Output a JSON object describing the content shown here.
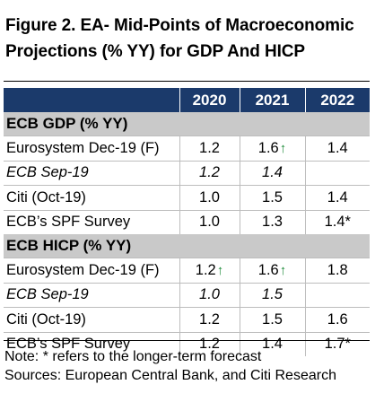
{
  "title_line1": "Figure 2. EA- Mid-Points of Macroeconomic",
  "title_line2": "Projections (% YY) for GDP And HICP",
  "columns": [
    "2020",
    "2021",
    "2022"
  ],
  "arrow_icon": "up-arrow",
  "arrow_color": "#1e8c3a",
  "header_color": "#1b3a6b",
  "section_color": "#c9c9c9",
  "sections": [
    {
      "title": "ECB GDP (% YY)",
      "rows": [
        {
          "label": "Eurosystem Dec-19 (F)",
          "v2020": "1.2",
          "v2021": "1.6",
          "v2021_arrow": "↑",
          "v2022": "1.4"
        },
        {
          "label": "ECB Sep-19",
          "v2020": "1.2",
          "v2021": "1.4",
          "v2022": ""
        },
        {
          "label": "Citi (Oct-19)",
          "v2020": "1.0",
          "v2021": "1.5",
          "v2022": "1.4"
        },
        {
          "label": "ECB’s SPF Survey",
          "v2020": "1.0",
          "v2021": "1.3",
          "v2022": "1.4*"
        }
      ]
    },
    {
      "title": "ECB HICP (% YY)",
      "rows": [
        {
          "label": "Eurosystem Dec-19 (F)",
          "v2020": "1.2",
          "v2020_arrow": "↑",
          "v2021": "1.6",
          "v2021_arrow": "↑",
          "v2022": "1.8"
        },
        {
          "label": "ECB Sep-19",
          "v2020": "1.0",
          "v2021": "1.5",
          "v2022": ""
        },
        {
          "label": "Citi (Oct-19)",
          "v2020": "1.2",
          "v2021": "1.5",
          "v2022": "1.6"
        },
        {
          "label": "ECB’s SPF Survey",
          "v2020": "1.2",
          "v2021": "1.4",
          "v2022": "1.7*"
        }
      ]
    }
  ],
  "note": "Note: * refers to the longer-term forecast",
  "sources": "Sources: European Central Bank, and Citi Research"
}
